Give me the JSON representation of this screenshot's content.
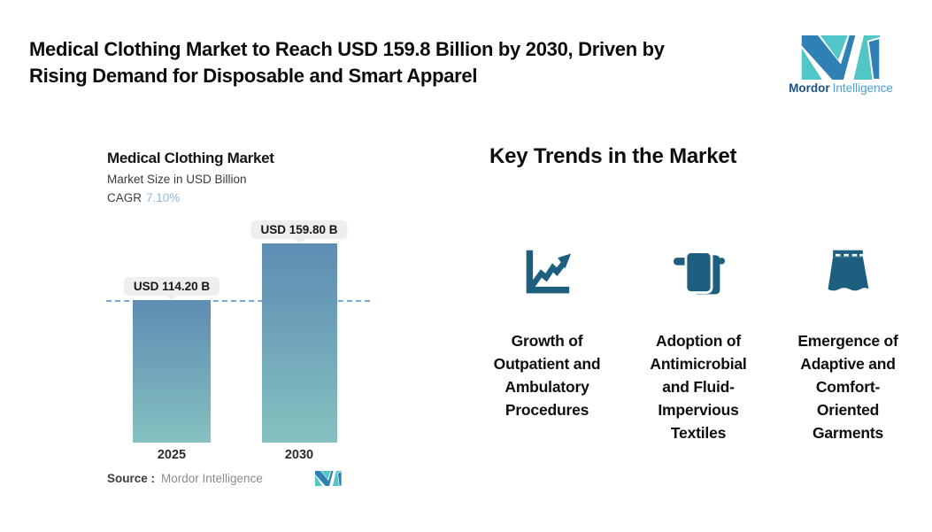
{
  "header": {
    "title": "Medical Clothing Market to Reach USD 159.8 Billion by 2030, Driven by\nRising Demand for Disposable and Smart Apparel",
    "brand": {
      "word_primary": "Mordor",
      "word_secondary": "Intelligence"
    }
  },
  "chart": {
    "title": "Medical Clothing Market",
    "subtitle": "Market Size in USD Billion",
    "cagr_label": "CAGR",
    "cagr_value": "7.10%",
    "bars": [
      {
        "year": "2025",
        "value_label": "USD 114.20 B"
      },
      {
        "year": "2030",
        "value_label": "USD 159.80 B"
      }
    ],
    "source_label": "Source :",
    "source_value": "Mordor Intelligence"
  },
  "chart_data": {
    "type": "bar",
    "categories": [
      "2025",
      "2030"
    ],
    "values": [
      114.2,
      159.8
    ],
    "title": "Medical Clothing Market",
    "ylabel": "Market Size in USD Billion",
    "annotations": [
      "USD 114.20 B",
      "USD 159.80 B",
      "CAGR 7.10%"
    ],
    "ylim": [
      0,
      185
    ],
    "grid": false,
    "legend": "none",
    "bar_gradient": [
      "#5d8db3",
      "#86c2c0"
    ],
    "reference_line": {
      "y": 114.2,
      "style": "dashed",
      "color": "#7aa7cd"
    }
  },
  "trends": {
    "heading": "Key Trends in the Market",
    "items": [
      {
        "icon": "line-chart-growth-icon",
        "label": "Growth of\nOutpatient and\nAmbulatory\nProcedures"
      },
      {
        "icon": "towel-textile-icon",
        "label": "Adoption of\nAntimicrobial\nand Fluid-\nImpervious\nTextiles"
      },
      {
        "icon": "garment-skirt-icon",
        "label": "Emergence of\nAdaptive and\nComfort-\nOriented\nGarments"
      }
    ]
  },
  "colors": {
    "icon": "#1e5f80",
    "brand_blue": "#2f80b5",
    "brand_teal": "#52c5c6",
    "brand_text_primary": "#1c5180",
    "brand_text_secondary": "#4aa0d3",
    "cagr_value": "#8fb9d8",
    "pill_bg": "#edefec",
    "dashed_line": "#7aa7cd",
    "bar_top": "#5d8db3",
    "bar_bottom": "#86c2c0"
  }
}
